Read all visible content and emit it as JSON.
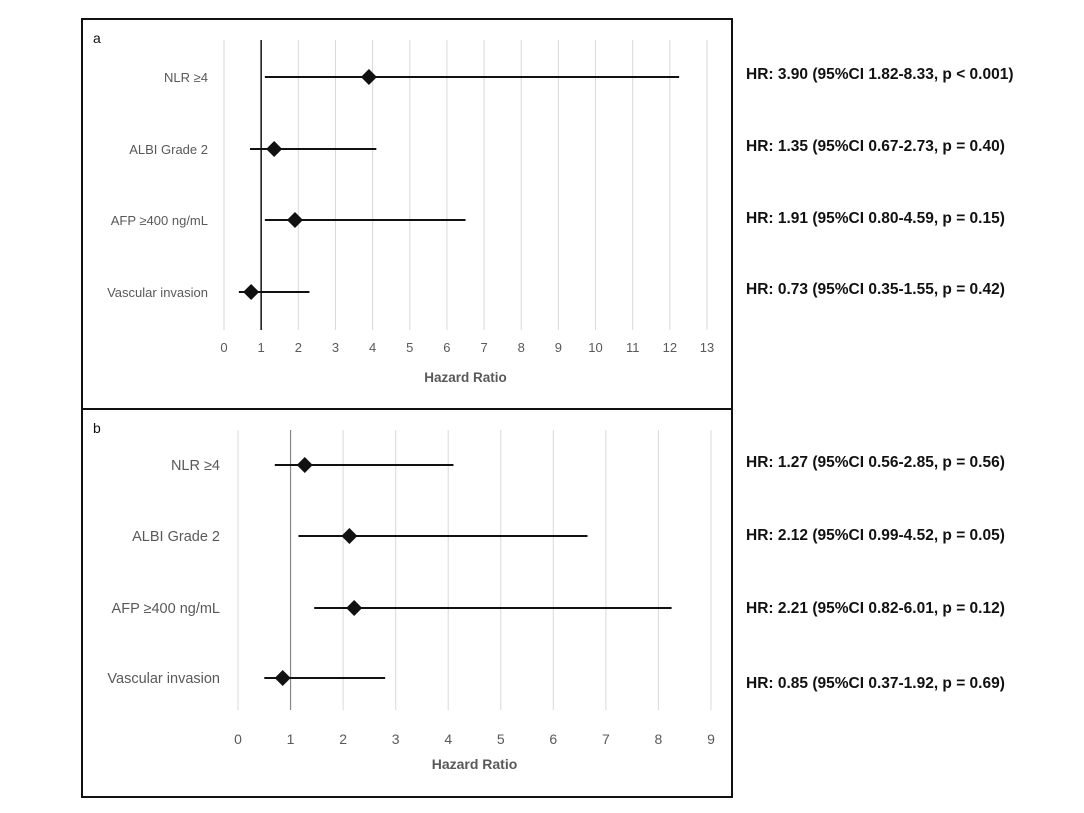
{
  "chart_data": [
    {
      "type": "forest",
      "panel_label": "a",
      "xlabel": "Hazard Ratio",
      "xlim": [
        0,
        13
      ],
      "xticks": [
        0,
        1,
        2,
        3,
        4,
        5,
        6,
        7,
        8,
        9,
        10,
        11,
        12,
        13
      ],
      "reference_line": 1,
      "grid": true,
      "rows": [
        {
          "label": "NLR ≥4",
          "hr": 3.9,
          "lo": 1.82,
          "hi": 8.33,
          "hr_text": "HR: 3.90 (95%CI 1.82-8.33, p < 0.001)"
        },
        {
          "label": "ALBI Grade 2",
          "hr": 1.35,
          "lo": 0.67,
          "hi": 2.73,
          "hr_text": "HR: 1.35 (95%CI 0.67-2.73, p = 0.40)"
        },
        {
          "label": "AFP ≥400 ng/mL",
          "hr": 1.91,
          "lo": 0.8,
          "hi": 4.59,
          "hr_text": "HR: 1.91 (95%CI 0.80-4.59, p = 0.15)"
        },
        {
          "label": "Vascular invasion",
          "hr": 0.73,
          "lo": 0.35,
          "hi": 1.55,
          "hr_text": "HR: 0.73 (95%CI 0.35-1.55, p = 0.42)"
        }
      ],
      "drawn_whiskers": [
        {
          "lo": 1.1,
          "hi": 12.25
        },
        {
          "lo": 0.7,
          "hi": 4.1
        },
        {
          "lo": 1.1,
          "hi": 6.5
        },
        {
          "lo": 0.4,
          "hi": 2.3
        }
      ]
    },
    {
      "type": "forest",
      "panel_label": "b",
      "xlabel": "Hazard Ratio",
      "xlim": [
        0,
        9
      ],
      "xticks": [
        0,
        1,
        2,
        3,
        4,
        5,
        6,
        7,
        8,
        9
      ],
      "reference_line": 1,
      "grid": true,
      "rows": [
        {
          "label": "NLR ≥4",
          "hr": 1.27,
          "lo": 0.56,
          "hi": 2.85,
          "hr_text": "HR: 1.27 (95%CI 0.56-2.85, p = 0.56)"
        },
        {
          "label": "ALBI Grade 2",
          "hr": 2.12,
          "lo": 0.99,
          "hi": 4.52,
          "hr_text": "HR: 2.12 (95%CI 0.99-4.52, p = 0.05)"
        },
        {
          "label": "AFP ≥400 ng/mL",
          "hr": 2.21,
          "lo": 0.82,
          "hi": 6.01,
          "hr_text": "HR: 2.21 (95%CI 0.82-6.01, p = 0.12)"
        },
        {
          "label": "Vascular invasion",
          "hr": 0.85,
          "lo": 0.37,
          "hi": 1.92,
          "hr_text": "HR: 0.85 (95%CI 0.37-1.92, p = 0.69)"
        }
      ],
      "drawn_whiskers": [
        {
          "lo": 0.7,
          "hi": 4.1
        },
        {
          "lo": 1.15,
          "hi": 6.65
        },
        {
          "lo": 1.45,
          "hi": 8.25
        },
        {
          "lo": 0.5,
          "hi": 2.8
        }
      ]
    }
  ]
}
